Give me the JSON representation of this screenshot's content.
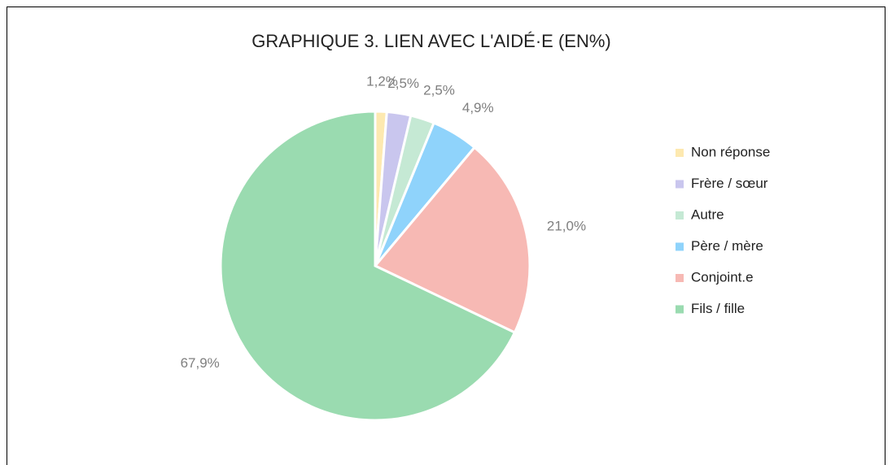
{
  "chart_data": {
    "type": "pie",
    "title": "GRAPHIQUE 3. LIEN AVEC L'AIDÉ·E (EN%)",
    "categories": [
      "Non réponse",
      "Frère / sœur",
      "Autre",
      "Père / mère",
      "Conjoint.e",
      "Fils / fille"
    ],
    "values": [
      1.2,
      2.5,
      2.5,
      4.9,
      21.0,
      67.9
    ],
    "value_labels": [
      "1,2%",
      "2,5%",
      "2,5%",
      "4,9%",
      "21,0%",
      "67,9%"
    ],
    "colors": [
      "#fde9b0",
      "#c9c6ee",
      "#c5e9d4",
      "#8fd3fb",
      "#f7b9b4",
      "#9adbb0"
    ],
    "legend": "right"
  }
}
